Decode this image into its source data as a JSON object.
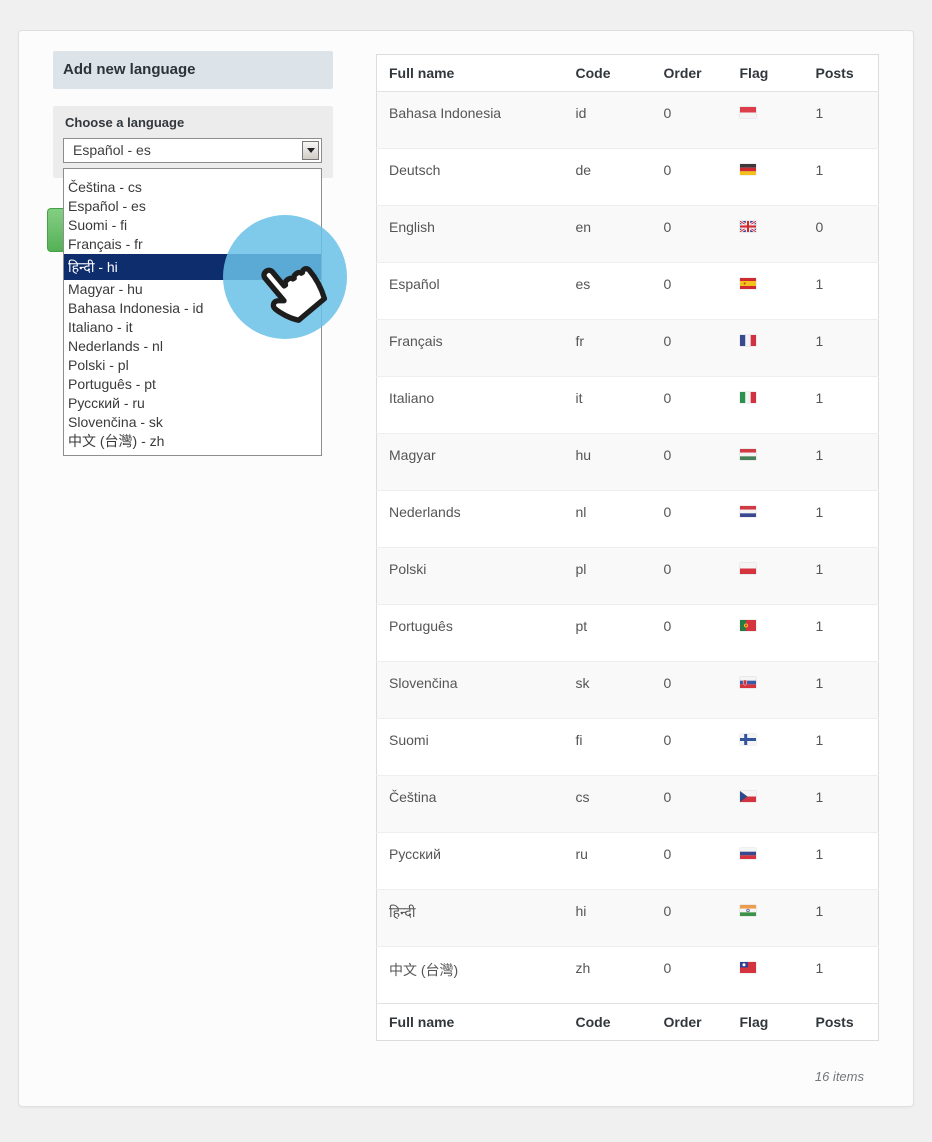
{
  "panel": {
    "title": "Add new language",
    "form": {
      "label": "Choose a language",
      "select_value": "Español - es",
      "selected_option": "हिन्दी - hi",
      "dropdown_options": [
        "Čeština - cs",
        "Español - es",
        "Suomi - fi",
        "Français - fr",
        "हिन्दी - hi",
        "Magyar - hu",
        "Bahasa Indonesia - id",
        "Italiano - it",
        "Nederlands - nl",
        "Polski - pl",
        "Português - pt",
        "Русский - ru",
        "Slovenčina - sk",
        "中文 (台灣) - zh"
      ]
    }
  },
  "table": {
    "columns": [
      "Full name",
      "Code",
      "Order",
      "Flag",
      "Posts"
    ],
    "footer_columns": [
      "Full name",
      "Code",
      "Order",
      "Flag",
      "Posts"
    ],
    "rows": [
      {
        "name": "Bahasa Indonesia",
        "code": "id",
        "order": "0",
        "flag": "id",
        "posts": "1"
      },
      {
        "name": "Deutsch",
        "code": "de",
        "order": "0",
        "flag": "de",
        "posts": "1"
      },
      {
        "name": "English",
        "code": "en",
        "order": "0",
        "flag": "gb",
        "posts": "0"
      },
      {
        "name": "Español",
        "code": "es",
        "order": "0",
        "flag": "es",
        "posts": "1"
      },
      {
        "name": "Français",
        "code": "fr",
        "order": "0",
        "flag": "fr",
        "posts": "1"
      },
      {
        "name": "Italiano",
        "code": "it",
        "order": "0",
        "flag": "it",
        "posts": "1"
      },
      {
        "name": "Magyar",
        "code": "hu",
        "order": "0",
        "flag": "hu",
        "posts": "1"
      },
      {
        "name": "Nederlands",
        "code": "nl",
        "order": "0",
        "flag": "nl",
        "posts": "1"
      },
      {
        "name": "Polski",
        "code": "pl",
        "order": "0",
        "flag": "pl",
        "posts": "1"
      },
      {
        "name": "Português",
        "code": "pt",
        "order": "0",
        "flag": "pt",
        "posts": "1"
      },
      {
        "name": "Slovenčina",
        "code": "sk",
        "order": "0",
        "flag": "sk",
        "posts": "1"
      },
      {
        "name": "Suomi",
        "code": "fi",
        "order": "0",
        "flag": "fi",
        "posts": "1"
      },
      {
        "name": "Čeština",
        "code": "cs",
        "order": "0",
        "flag": "cz",
        "posts": "1"
      },
      {
        "name": "Русский",
        "code": "ru",
        "order": "0",
        "flag": "ru",
        "posts": "1"
      },
      {
        "name": "हिन्दी",
        "code": "hi",
        "order": "0",
        "flag": "in",
        "posts": "1"
      },
      {
        "name": "中文 (台灣)",
        "code": "zh",
        "order": "0",
        "flag": "tw",
        "posts": "1"
      }
    ],
    "items_count": "16 items"
  },
  "colors": {
    "selection_navy": "#0e2d6d",
    "panel_header_bg": "#dce4e9",
    "add_button_green": "#55b155",
    "cursor_circle_blue": "#69c0e8",
    "page_bg": "#f0f0f1"
  }
}
